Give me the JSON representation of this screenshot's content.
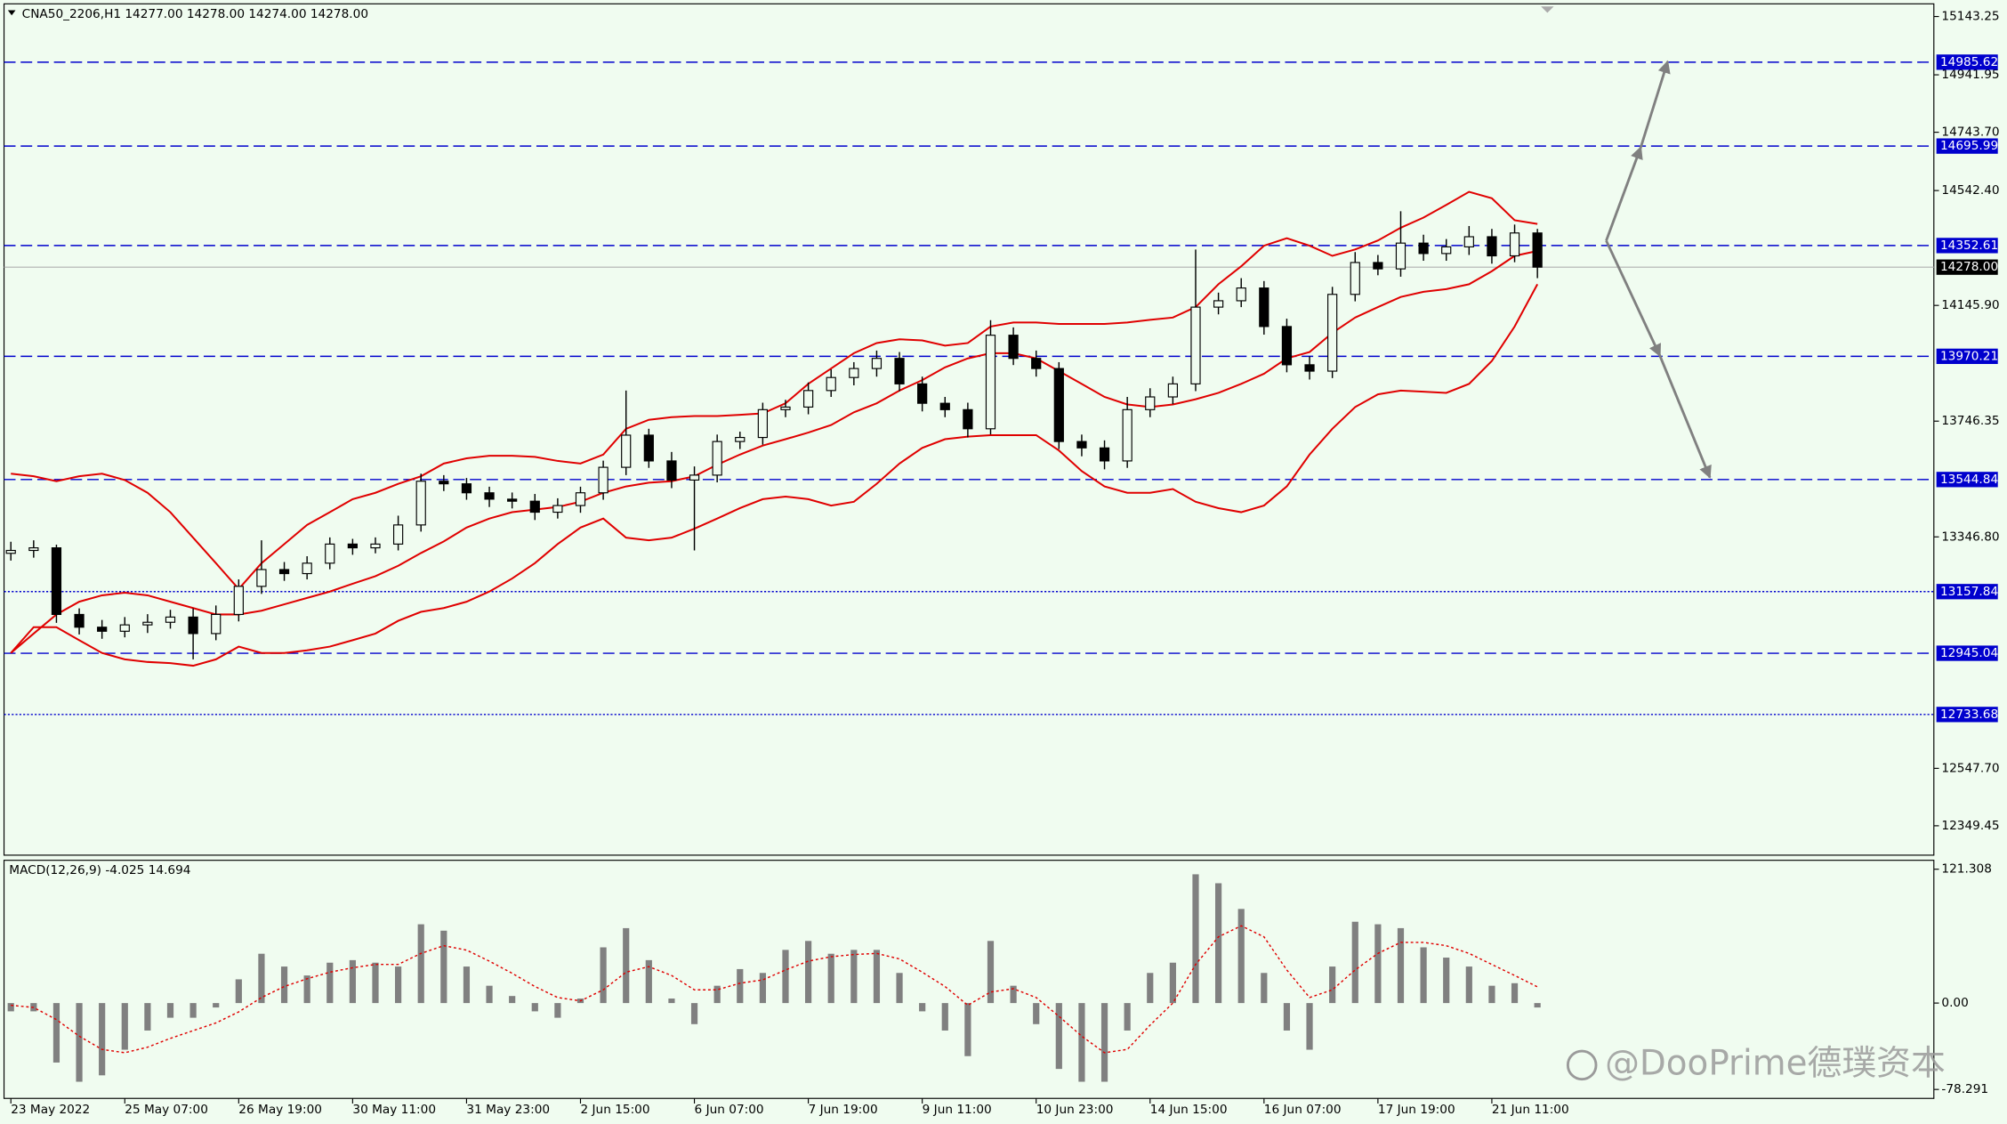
{
  "chart_data": [
    {
      "type": "candlestick",
      "title": "CNA50_2206,H1  14277.00 14278.00 14274.00 14278.00",
      "xlim": [
        -0.3,
        84.4
      ],
      "xticks": [
        {
          "value": 0,
          "label": "23 May 2022"
        },
        {
          "value": 5,
          "label": "25 May 07:00"
        },
        {
          "value": 10,
          "label": "26 May 19:00"
        },
        {
          "value": 15,
          "label": "30 May 11:00"
        },
        {
          "value": 20,
          "label": "31 May 23:00"
        },
        {
          "value": 25,
          "label": "2 Jun 15:00"
        },
        {
          "value": 30,
          "label": "6 Jun 07:00"
        },
        {
          "value": 35,
          "label": "7 Jun 19:00"
        },
        {
          "value": 40,
          "label": "9 Jun 11:00"
        },
        {
          "value": 45,
          "label": "10 Jun 23:00"
        },
        {
          "value": 50,
          "label": "14 Jun 15:00"
        },
        {
          "value": 55,
          "label": "16 Jun 07:00"
        },
        {
          "value": 60,
          "label": "17 Jun 19:00"
        },
        {
          "value": 65,
          "label": "21 Jun 11:00"
        }
      ],
      "ylim": [
        12248,
        15187
      ],
      "yticks": [
        15143.25,
        14941.95,
        {
          "value": 14743.7,
          "label": "14743.70"
        },
        {
          "value": 14542.4,
          "label": "14542.40"
        },
        {
          "value": 14145.9,
          "label": "14145.90"
        },
        13746.35,
        {
          "value": 13346.8,
          "label": "13346.80"
        },
        {
          "value": 12547.7,
          "label": "12547.70"
        },
        12349.45
      ],
      "open": [
        13290,
        13300,
        13309,
        13079,
        13035,
        13021,
        13043,
        13052,
        13070,
        13013,
        13079,
        13176,
        13234,
        13220,
        13256,
        13322,
        13309,
        13322,
        13388,
        13539,
        13530,
        13499,
        13477,
        13470,
        13432,
        13455,
        13499,
        13587,
        13698,
        13609,
        13543,
        13560,
        13676,
        13690,
        13786,
        13795,
        13852,
        13897,
        13928,
        13963,
        13875,
        13808,
        13786,
        13720,
        14043,
        13963,
        13928,
        13676,
        13654,
        13609,
        13786,
        13830,
        13875,
        14140,
        14162,
        14206,
        14073,
        13941,
        13919,
        14184,
        14294,
        14272,
        14361,
        14325,
        14348,
        14383,
        14317,
        14396
      ],
      "high": [
        13330,
        13335,
        13320,
        13100,
        13060,
        13070,
        13080,
        13095,
        13100,
        13110,
        13200,
        13335,
        13260,
        13280,
        13345,
        13340,
        13345,
        13420,
        13565,
        13560,
        13550,
        13520,
        13500,
        13495,
        13480,
        13520,
        13610,
        13852,
        13720,
        13640,
        13590,
        13700,
        13710,
        13810,
        13820,
        13880,
        13925,
        13950,
        13990,
        13985,
        13900,
        13830,
        13810,
        14095,
        14070,
        13990,
        13950,
        13700,
        13680,
        13830,
        13860,
        13900,
        14339,
        14190,
        14240,
        14230,
        14100,
        13970,
        14210,
        14330,
        14320,
        14471,
        14390,
        14375,
        14420,
        14410,
        14425,
        14410
      ],
      "low": [
        13265,
        13275,
        13050,
        13010,
        12995,
        13000,
        13015,
        13030,
        12924,
        12990,
        13055,
        13150,
        13195,
        13200,
        13235,
        13285,
        13290,
        13300,
        13365,
        13505,
        13475,
        13450,
        13445,
        13405,
        13410,
        13430,
        13475,
        13560,
        13585,
        13515,
        13300,
        13535,
        13650,
        13665,
        13760,
        13770,
        13830,
        13870,
        13900,
        13850,
        13780,
        13760,
        13690,
        13700,
        13940,
        13900,
        13650,
        13625,
        13580,
        13585,
        13760,
        13805,
        13850,
        14115,
        14140,
        14045,
        13915,
        13890,
        13895,
        14160,
        14250,
        14245,
        14300,
        14300,
        14320,
        14290,
        14295,
        14240
      ],
      "close": [
        13300,
        13309,
        13079,
        13035,
        13021,
        13043,
        13052,
        13070,
        13013,
        13079,
        13176,
        13234,
        13220,
        13256,
        13322,
        13309,
        13322,
        13388,
        13539,
        13530,
        13499,
        13477,
        13470,
        13432,
        13455,
        13499,
        13587,
        13698,
        13609,
        13543,
        13560,
        13676,
        13690,
        13786,
        13795,
        13852,
        13897,
        13928,
        13963,
        13875,
        13808,
        13786,
        13720,
        14043,
        13963,
        13928,
        13676,
        13654,
        13609,
        13786,
        13830,
        13875,
        14140,
        14162,
        14206,
        14073,
        13941,
        13919,
        14184,
        14294,
        14272,
        14361,
        14325,
        14348,
        14383,
        14317,
        14396,
        14278
      ],
      "up_color": "#f0fcf0",
      "down_color": "#000000",
      "wick_color": "#000000",
      "series": [
        {
          "color": "#e00000",
          "values": [
            13565,
            13556,
            13539,
            13556,
            13565,
            13543,
            13499,
            13432,
            13344,
            13256,
            13167,
            13256,
            13322,
            13388,
            13432,
            13477,
            13499,
            13530,
            13556,
            13600,
            13618,
            13627,
            13627,
            13623,
            13609,
            13600,
            13631,
            13720,
            13751,
            13760,
            13764,
            13764,
            13768,
            13773,
            13808,
            13875,
            13928,
            13981,
            14016,
            14029,
            14025,
            14007,
            14016,
            14073,
            14087,
            14087,
            14082,
            14082,
            14082,
            14087,
            14096,
            14104,
            14140,
            14219,
            14281,
            14352,
            14378,
            14352,
            14317,
            14339,
            14370,
            14414,
            14449,
            14493,
            14538,
            14516,
            14440,
            14427
          ]
        },
        {
          "color": "#e00000",
          "values": [
            12946,
            13013,
            13079,
            13123,
            13145,
            13154,
            13145,
            13123,
            13101,
            13079,
            13079,
            13092,
            13114,
            13136,
            13158,
            13185,
            13211,
            13247,
            13291,
            13331,
            13379,
            13410,
            13432,
            13441,
            13450,
            13468,
            13499,
            13521,
            13534,
            13539,
            13556,
            13596,
            13631,
            13662,
            13684,
            13707,
            13733,
            13777,
            13808,
            13852,
            13888,
            13932,
            13963,
            13981,
            13981,
            13963,
            13919,
            13875,
            13830,
            13804,
            13795,
            13804,
            13822,
            13844,
            13875,
            13910,
            13963,
            13985,
            14051,
            14104,
            14140,
            14175,
            14193,
            14202,
            14219,
            14264,
            14317,
            14334
          ]
        },
        {
          "color": "#e00000",
          "values": [
            12946,
            13035,
            13035,
            12990,
            12946,
            12924,
            12915,
            12911,
            12902,
            12924,
            12968,
            12946,
            12946,
            12955,
            12968,
            12990,
            13013,
            13057,
            13088,
            13101,
            13123,
            13158,
            13203,
            13256,
            13322,
            13379,
            13410,
            13344,
            13335,
            13344,
            13375,
            13410,
            13446,
            13477,
            13486,
            13477,
            13455,
            13468,
            13530,
            13600,
            13654,
            13684,
            13693,
            13698,
            13698,
            13698,
            13645,
            13574,
            13521,
            13499,
            13499,
            13512,
            13468,
            13446,
            13432,
            13455,
            13521,
            13631,
            13720,
            13795,
            13839,
            13852,
            13848,
            13844,
            13875,
            13954,
            14073,
            14219
          ]
        }
      ],
      "levels": [
        {
          "value": 14985.62,
          "style": "dashed"
        },
        {
          "value": 14695.99,
          "style": "dashed"
        },
        {
          "value": 14352.61,
          "style": "dashed"
        },
        {
          "value": 13970.21,
          "style": "dashed"
        },
        {
          "value": 13544.84,
          "style": "dashed"
        },
        {
          "value": 13157.84,
          "style": "dotted"
        },
        {
          "value": 12945.04,
          "style": "dashed"
        },
        {
          "value": 12733.68,
          "style": "dotted"
        }
      ],
      "level_color": "#0000cd",
      "current_price": {
        "value": 14278,
        "label": "14278.00"
      }
    },
    {
      "type": "bar",
      "title": "MACD(12,26,9) -4.025 14.694",
      "xlim": [
        -0.3,
        84.4
      ],
      "ylim": [
        -86.4,
        129.4
      ],
      "yticks": [
        121.308,
        {
          "value": 0,
          "label": "0.00"
        },
        -78.291
      ],
      "color": "#808080",
      "values": [
        -7.5,
        -7.5,
        -53.9,
        -71.3,
        -65.5,
        -42.3,
        -24.9,
        -13.3,
        -13.3,
        -4.0,
        21.5,
        44.7,
        33.1,
        25.0,
        36.6,
        38.9,
        36.6,
        33.1,
        71.4,
        65.6,
        33.1,
        15.7,
        6.4,
        -7.5,
        -13.3,
        4.1,
        50.5,
        67.9,
        38.9,
        4.1,
        -19.1,
        15.7,
        30.8,
        27.3,
        48.2,
        56.3,
        44.7,
        48.2,
        48.2,
        27.3,
        -7.5,
        -24.9,
        -48.1,
        56.3,
        15.7,
        -19.1,
        -59.7,
        -71.3,
        -71.3,
        -24.9,
        27.3,
        36.6,
        116.7,
        108.6,
        85.3,
        27.3,
        -24.9,
        -42.3,
        33.1,
        73.7,
        71.4,
        67.9,
        50.5,
        41.2,
        33.1,
        15.7,
        18.0,
        -4.0
      ],
      "signal": {
        "color": "#e00000",
        "values": [
          -2,
          -4,
          -15,
          -30,
          -42,
          -45,
          -40,
          -32,
          -25,
          -18,
          -8,
          5,
          15,
          22,
          28,
          32,
          35,
          35,
          45,
          52,
          48,
          38,
          27,
          15,
          5,
          2,
          12,
          28,
          33,
          25,
          12,
          12,
          18,
          21,
          30,
          38,
          42,
          44,
          45,
          40,
          28,
          15,
          -2,
          10,
          13,
          5,
          -12,
          -30,
          -45,
          -42,
          -20,
          0,
          35,
          60,
          70,
          60,
          30,
          5,
          12,
          30,
          45,
          55,
          55,
          52,
          45,
          35,
          25,
          14.7
        ]
      }
    }
  ],
  "watermark": "@DooPrime德璞资本"
}
